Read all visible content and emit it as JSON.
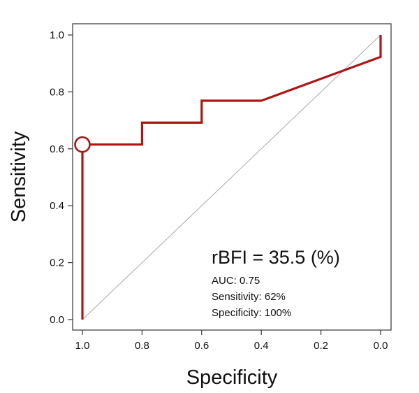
{
  "chart_data": {
    "type": "line",
    "xlabel": "Specificity",
    "ylabel": "Sensitivity",
    "xlim": [
      1.0,
      0.0
    ],
    "ylim": [
      0.0,
      1.0
    ],
    "x_reversed": true,
    "grid": false,
    "xticks": [
      1.0,
      0.8,
      0.6,
      0.4,
      0.2,
      0.0
    ],
    "xtick_labels": [
      "1.0",
      "0.8",
      "0.6",
      "0.4",
      "0.2",
      "0.0"
    ],
    "yticks": [
      0.0,
      0.2,
      0.4,
      0.6,
      0.8,
      1.0
    ],
    "ytick_labels": [
      "0.0",
      "0.2",
      "0.4",
      "0.6",
      "0.8",
      "1.0"
    ],
    "series": [
      {
        "color": "#b01414",
        "points": [
          [
            1.0,
            0.0
          ],
          [
            1.0,
            0.615
          ],
          [
            0.8,
            0.615
          ],
          [
            0.8,
            0.692
          ],
          [
            0.6,
            0.692
          ],
          [
            0.6,
            0.769
          ],
          [
            0.4,
            0.769
          ],
          [
            0.0,
            0.923
          ],
          [
            0.0,
            1.0
          ]
        ]
      }
    ],
    "reference_line": {
      "points": [
        [
          1.0,
          0.0
        ],
        [
          0.0,
          1.0
        ]
      ],
      "color": "#aaaaaa"
    },
    "highlight_point": {
      "x": 1.0,
      "y": 0.615,
      "color": "#b01414"
    },
    "annotations": {
      "main": "rBFI = 35.5 (%)",
      "lines": [
        "AUC: 0.75",
        "Sensitivity: 62%",
        "Specificity: 100%"
      ]
    }
  }
}
